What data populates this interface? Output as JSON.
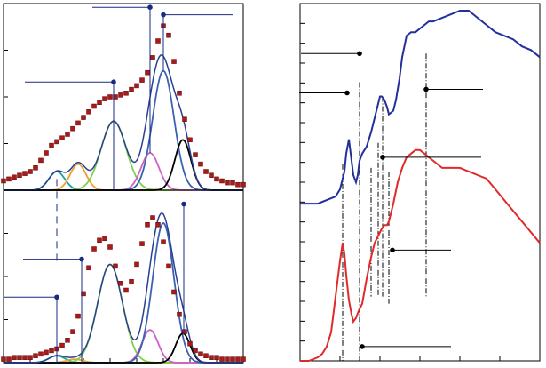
{
  "colors": {
    "axis": "#000000",
    "guide_left": "#1a2a80",
    "guide_right": "#000000",
    "marker": "#aa1a1a",
    "marker_dark": "#5a0a0a",
    "envelope": "#2a3f90",
    "blue_spectrum": "#23309a",
    "red_spectrum": "#e02a2a",
    "teal": "#16a3a3",
    "orange": "#f0a030",
    "green": "#7fd04a",
    "blue_peak": "#3a62b0",
    "magenta": "#d060c8",
    "black": "#000000"
  },
  "chart_data": [
    {
      "type": "scatter",
      "panel": "top-left",
      "title": "",
      "xlabel": "",
      "ylabel": "",
      "xlim": [
        0,
        270
      ],
      "ylim": [
        0,
        1
      ],
      "grid": false,
      "series": [
        {
          "role": "data-markers",
          "color_key": "marker",
          "x": [
            0,
            6,
            12,
            18,
            24,
            30,
            36,
            42,
            48,
            54,
            60,
            66,
            72,
            78,
            84,
            90,
            96,
            102,
            108,
            114,
            120,
            126,
            132,
            138,
            144,
            150,
            156,
            162,
            168,
            174,
            180,
            186,
            192,
            198,
            204,
            210,
            216,
            222,
            228,
            234,
            240,
            246,
            252,
            258,
            264,
            270
          ],
          "y": [
            0.05,
            0.06,
            0.07,
            0.08,
            0.09,
            0.1,
            0.12,
            0.16,
            0.2,
            0.24,
            0.26,
            0.28,
            0.3,
            0.33,
            0.36,
            0.39,
            0.42,
            0.45,
            0.47,
            0.49,
            0.5,
            0.5,
            0.51,
            0.52,
            0.54,
            0.56,
            0.59,
            0.63,
            0.71,
            0.8,
            0.88,
            0.83,
            0.69,
            0.52,
            0.38,
            0.27,
            0.19,
            0.14,
            0.1,
            0.08,
            0.06,
            0.05,
            0.04,
            0.04,
            0.03,
            0.03
          ]
        },
        {
          "role": "peak",
          "color_key": "teal",
          "center": 60,
          "width": 9,
          "height": 0.1
        },
        {
          "role": "peak",
          "color_key": "orange",
          "center": 84,
          "width": 9,
          "height": 0.14
        },
        {
          "role": "peak",
          "color_key": "green",
          "center": 124,
          "width": 14,
          "height": 0.37
        },
        {
          "role": "peak",
          "color_key": "magenta",
          "center": 165,
          "width": 10,
          "height": 0.2
        },
        {
          "role": "peak",
          "color_key": "blue_peak",
          "center": 180,
          "width": 12,
          "height": 0.64
        },
        {
          "role": "peak",
          "color_key": "black",
          "center": 202,
          "width": 9,
          "height": 0.27
        }
      ],
      "annotations": [
        {
          "x": 60,
          "kind": "dashed",
          "y_from": 0.06,
          "y_to": -0.38
        },
        {
          "x": 124,
          "kind": "leader",
          "y_tip": 0.58,
          "y_from": 0.0,
          "label_side": "left",
          "label_length": 100
        },
        {
          "x": 165,
          "kind": "leader",
          "y_tip": 0.98,
          "y_from": 0.2,
          "label_side": "left",
          "label_length": 65
        },
        {
          "x": 180,
          "kind": "leader",
          "y_tip": 0.94,
          "y_from": 0.64,
          "label_side": "right",
          "label_length": 78
        }
      ]
    },
    {
      "type": "scatter",
      "panel": "bottom-left",
      "title": "",
      "xlabel": "",
      "ylabel": "",
      "xlim": [
        0,
        270
      ],
      "ylim": [
        0,
        1
      ],
      "grid": false,
      "series": [
        {
          "role": "data-markers",
          "color_key": "marker",
          "x": [
            0,
            6,
            12,
            18,
            24,
            30,
            36,
            42,
            48,
            54,
            60,
            66,
            72,
            78,
            84,
            90,
            96,
            102,
            108,
            114,
            120,
            126,
            132,
            138,
            144,
            150,
            156,
            162,
            168,
            174,
            180,
            186,
            192,
            198,
            204,
            210,
            216,
            222,
            228,
            234,
            240,
            246,
            252,
            258,
            264,
            270
          ],
          "y": [
            0.02,
            0.02,
            0.03,
            0.03,
            0.03,
            0.03,
            0.04,
            0.05,
            0.06,
            0.07,
            0.08,
            0.1,
            0.13,
            0.18,
            0.27,
            0.4,
            0.55,
            0.66,
            0.71,
            0.72,
            0.67,
            0.56,
            0.46,
            0.42,
            0.47,
            0.57,
            0.69,
            0.8,
            0.84,
            0.8,
            0.7,
            0.56,
            0.41,
            0.28,
            0.18,
            0.11,
            0.07,
            0.05,
            0.04,
            0.03,
            0.03,
            0.02,
            0.02,
            0.02,
            0.02,
            0.02
          ]
        },
        {
          "role": "peak",
          "color_key": "teal",
          "center": 60,
          "width": 9,
          "height": 0.04
        },
        {
          "role": "peak",
          "color_key": "orange",
          "center": 80,
          "width": 9,
          "height": 0.02
        },
        {
          "role": "peak",
          "color_key": "green",
          "center": 120,
          "width": 14,
          "height": 0.57
        },
        {
          "role": "peak",
          "color_key": "magenta",
          "center": 165,
          "width": 9,
          "height": 0.19
        },
        {
          "role": "peak",
          "color_key": "blue_peak",
          "center": 180,
          "width": 12,
          "height": 0.81
        },
        {
          "role": "peak",
          "color_key": "black",
          "center": 202,
          "width": 8,
          "height": 0.17
        }
      ],
      "annotations": [
        {
          "x": 60,
          "kind": "leader",
          "y_tip": 0.38,
          "y_from": 0.0,
          "label_side": "left",
          "label_length": 60
        },
        {
          "x": 88,
          "kind": "leader",
          "y_tip": 0.6,
          "y_from": 0.0,
          "label_side": "left",
          "label_length": 66
        },
        {
          "x": 203,
          "kind": "leader",
          "y_tip": 0.92,
          "y_from": 0.17,
          "label_side": "right",
          "label_length": 58
        }
      ]
    },
    {
      "type": "line",
      "panel": "right",
      "title": "",
      "xlabel": "",
      "ylabel": "",
      "xlim": [
        0,
        270
      ],
      "ylim": [
        0,
        1
      ],
      "grid": false,
      "series": [
        {
          "role": "spectrum-upper",
          "color_key": "blue_spectrum",
          "x": [
            0,
            10,
            20,
            30,
            40,
            45,
            50,
            52,
            55,
            57,
            60,
            63,
            65,
            67,
            70,
            75,
            80,
            85,
            88,
            90,
            92,
            95,
            98,
            100,
            105,
            108,
            112,
            115,
            120,
            125,
            130,
            135,
            140,
            145,
            150,
            160,
            170,
            180,
            190,
            200,
            210,
            220,
            230,
            240,
            250,
            260,
            270
          ],
          "y": [
            0.44,
            0.44,
            0.44,
            0.45,
            0.46,
            0.48,
            0.53,
            0.58,
            0.62,
            0.58,
            0.52,
            0.5,
            0.52,
            0.56,
            0.58,
            0.6,
            0.64,
            0.69,
            0.72,
            0.74,
            0.74,
            0.73,
            0.71,
            0.69,
            0.7,
            0.73,
            0.79,
            0.85,
            0.91,
            0.92,
            0.92,
            0.93,
            0.94,
            0.95,
            0.95,
            0.96,
            0.97,
            0.98,
            0.98,
            0.96,
            0.94,
            0.92,
            0.91,
            0.9,
            0.88,
            0.87,
            0.85
          ]
        },
        {
          "role": "spectrum-lower",
          "color_key": "red_spectrum",
          "x": [
            0,
            10,
            20,
            25,
            30,
            35,
            40,
            45,
            48,
            50,
            52,
            55,
            58,
            60,
            63,
            66,
            70,
            75,
            80,
            84,
            88,
            90,
            92,
            95,
            98,
            100,
            102,
            105,
            110,
            115,
            120,
            125,
            130,
            135,
            140,
            145,
            150,
            155,
            160,
            170,
            180,
            190,
            200,
            210,
            220,
            230,
            240,
            250,
            260,
            270
          ],
          "y": [
            0.0,
            0.0,
            0.01,
            0.02,
            0.04,
            0.08,
            0.18,
            0.28,
            0.33,
            0.3,
            0.24,
            0.17,
            0.13,
            0.11,
            0.12,
            0.14,
            0.16,
            0.23,
            0.29,
            0.33,
            0.35,
            0.36,
            0.37,
            0.38,
            0.38,
            0.39,
            0.41,
            0.44,
            0.5,
            0.54,
            0.57,
            0.58,
            0.59,
            0.59,
            0.58,
            0.57,
            0.56,
            0.55,
            0.54,
            0.54,
            0.54,
            0.53,
            0.52,
            0.51,
            0.48,
            0.45,
            0.42,
            0.39,
            0.36,
            0.33
          ]
        },
        {
          "role": "guide",
          "x": 48,
          "y_top": 0.55,
          "y_bottom": 0.0
        },
        {
          "role": "guide",
          "x": 67,
          "y_top": 0.78,
          "y_bottom": 0.0
        },
        {
          "role": "guide",
          "x": 80,
          "y_top": 0.54,
          "y_bottom": 0.18
        },
        {
          "role": "guide",
          "x": 88,
          "y_top": 0.61,
          "y_bottom": 0.18
        },
        {
          "role": "guide",
          "x": 93,
          "y_top": 0.74,
          "y_bottom": 0.18
        },
        {
          "role": "guide",
          "x": 100,
          "y_top": 0.53,
          "y_bottom": 0.16
        },
        {
          "role": "guide",
          "x": 142,
          "y_top": 0.86,
          "y_bottom": 0.18
        }
      ],
      "annotations": [
        {
          "x": 67,
          "y": 0.86,
          "label_side": "left",
          "label_length": 66
        },
        {
          "x": 53,
          "y": 0.75,
          "label_side": "left",
          "label_length": 54
        },
        {
          "x": 93,
          "y": 0.57,
          "label_side": "right",
          "label_length": 111
        },
        {
          "x": 142,
          "y": 0.76,
          "label_side": "right",
          "label_length": 64
        },
        {
          "x": 104,
          "y": 0.31,
          "label_side": "right",
          "label_length": 66
        },
        {
          "x": 70,
          "y": 0.04,
          "label_side": "right",
          "label_length": 100
        }
      ]
    }
  ]
}
